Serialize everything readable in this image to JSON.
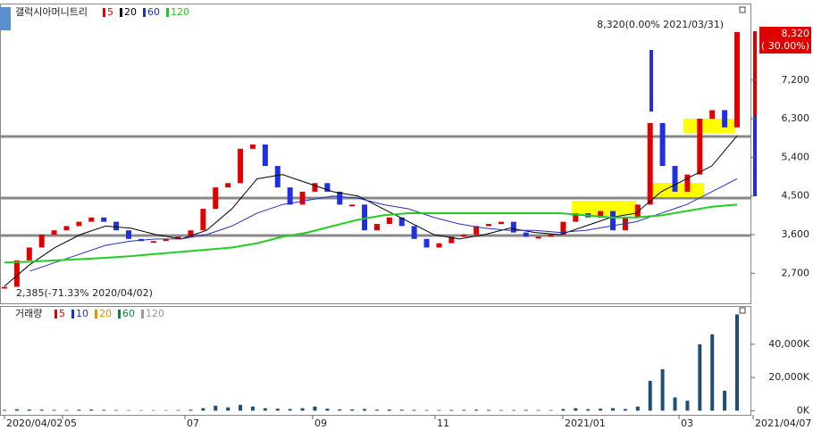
{
  "chart_data": [
    {
      "type": "candle",
      "title": "갤럭시아머니트리",
      "values": [
        2385,
        3000,
        3300,
        3600,
        3700,
        3800,
        3900,
        4000,
        3900,
        3700,
        3500,
        3450,
        3450,
        3500,
        3550,
        3700,
        4200,
        4700,
        4800,
        5600,
        5700,
        5200,
        4700,
        4300,
        4600,
        4800,
        4600,
        4300,
        4300,
        3700,
        3850,
        4000,
        3800,
        3500,
        3300,
        3400,
        3550,
        3600,
        3800,
        3850,
        3900,
        3650,
        3550,
        3550,
        3600,
        3900,
        4100,
        4000,
        4150,
        3700,
        4000,
        4300,
        6200,
        5200,
        4600,
        5000,
        6300,
        6500,
        6100,
        8320
      ],
      "series": [
        {
          "name": "5",
          "color": "#e00000"
        },
        {
          "name": "20",
          "color": "#000000",
          "values": [
            2400,
            2900,
            3300,
            3600,
            3800,
            3750,
            3600,
            3500,
            3700,
            4200,
            4900,
            5000,
            4800,
            4600,
            4500,
            4200,
            3900,
            3600,
            3500,
            3600,
            3750,
            3650,
            3600,
            3800,
            4000,
            4100,
            4600,
            4900,
            5200,
            5900
          ]
        },
        {
          "name": "60",
          "color": "#2030c0",
          "values": [
            null,
            2750,
            2950,
            3150,
            3350,
            3450,
            3500,
            3500,
            3600,
            3800,
            4100,
            4300,
            4400,
            4500,
            4450,
            4300,
            4200,
            4000,
            3850,
            3750,
            3700,
            3700,
            3650,
            3700,
            3800,
            3900,
            4100,
            4300,
            4600,
            4900
          ]
        },
        {
          "name": "120",
          "color": "#22cc22",
          "values": [
            2950,
            2970,
            3000,
            3030,
            3060,
            3100,
            3150,
            3200,
            3250,
            3300,
            3400,
            3550,
            3650,
            3800,
            3950,
            4050,
            4100,
            4100,
            4100,
            4100,
            4100,
            4100,
            4100,
            4050,
            4000,
            4000,
            4050,
            4150,
            4250,
            4300
          ]
        }
      ],
      "ylim": [
        2000,
        8900
      ],
      "yticks": [
        {
          "value": 2700,
          "label": "2,700"
        },
        {
          "value": 3600,
          "label": "3,600"
        },
        {
          "value": 4500,
          "label": "4,500"
        },
        {
          "value": 5400,
          "label": "5,400"
        },
        {
          "value": 6300,
          "label": "6,300"
        },
        {
          "value": 7200,
          "label": "7,200"
        }
      ],
      "annotations": [
        "8,320(0.00% 2021/03/31)",
        "2,385(-71.33% 2020/04/02)"
      ],
      "last_price": "8,320",
      "last_change": "( 30.00%)"
    },
    {
      "type": "volume",
      "title": "거래량",
      "values": [
        500,
        900,
        700,
        600,
        500,
        400,
        600,
        700,
        500,
        400,
        300,
        300,
        300,
        300,
        400,
        600,
        1500,
        3000,
        2000,
        3500,
        2500,
        1500,
        1200,
        1000,
        1500,
        2500,
        1200,
        800,
        800,
        1000,
        600,
        700,
        600,
        500,
        400,
        400,
        500,
        500,
        600,
        500,
        400,
        400,
        500,
        400,
        400,
        1000,
        1500,
        900,
        1200,
        1500,
        1000,
        2500,
        18000,
        25000,
        8000,
        6000,
        40000,
        46000,
        12000,
        58000
      ],
      "color": "#1f4e79",
      "series": [
        {
          "name": "5",
          "color": "#e00000"
        },
        {
          "name": "10",
          "color": "#2030c0"
        },
        {
          "name": "20",
          "color": "#e09000"
        },
        {
          "name": "60",
          "color": "#108040"
        },
        {
          "name": "120",
          "color": "#999999"
        }
      ],
      "ylim": [
        -2500,
        62000
      ],
      "yticks": [
        {
          "value": 0,
          "label": "0K"
        },
        {
          "value": 20000,
          "label": "20,000K"
        },
        {
          "value": 40000,
          "label": "40,000K"
        }
      ],
      "xlabels": [
        "2020/04/02",
        "05",
        "07",
        "09",
        "11",
        "2021/01",
        "03",
        "2021/04/07"
      ]
    }
  ]
}
